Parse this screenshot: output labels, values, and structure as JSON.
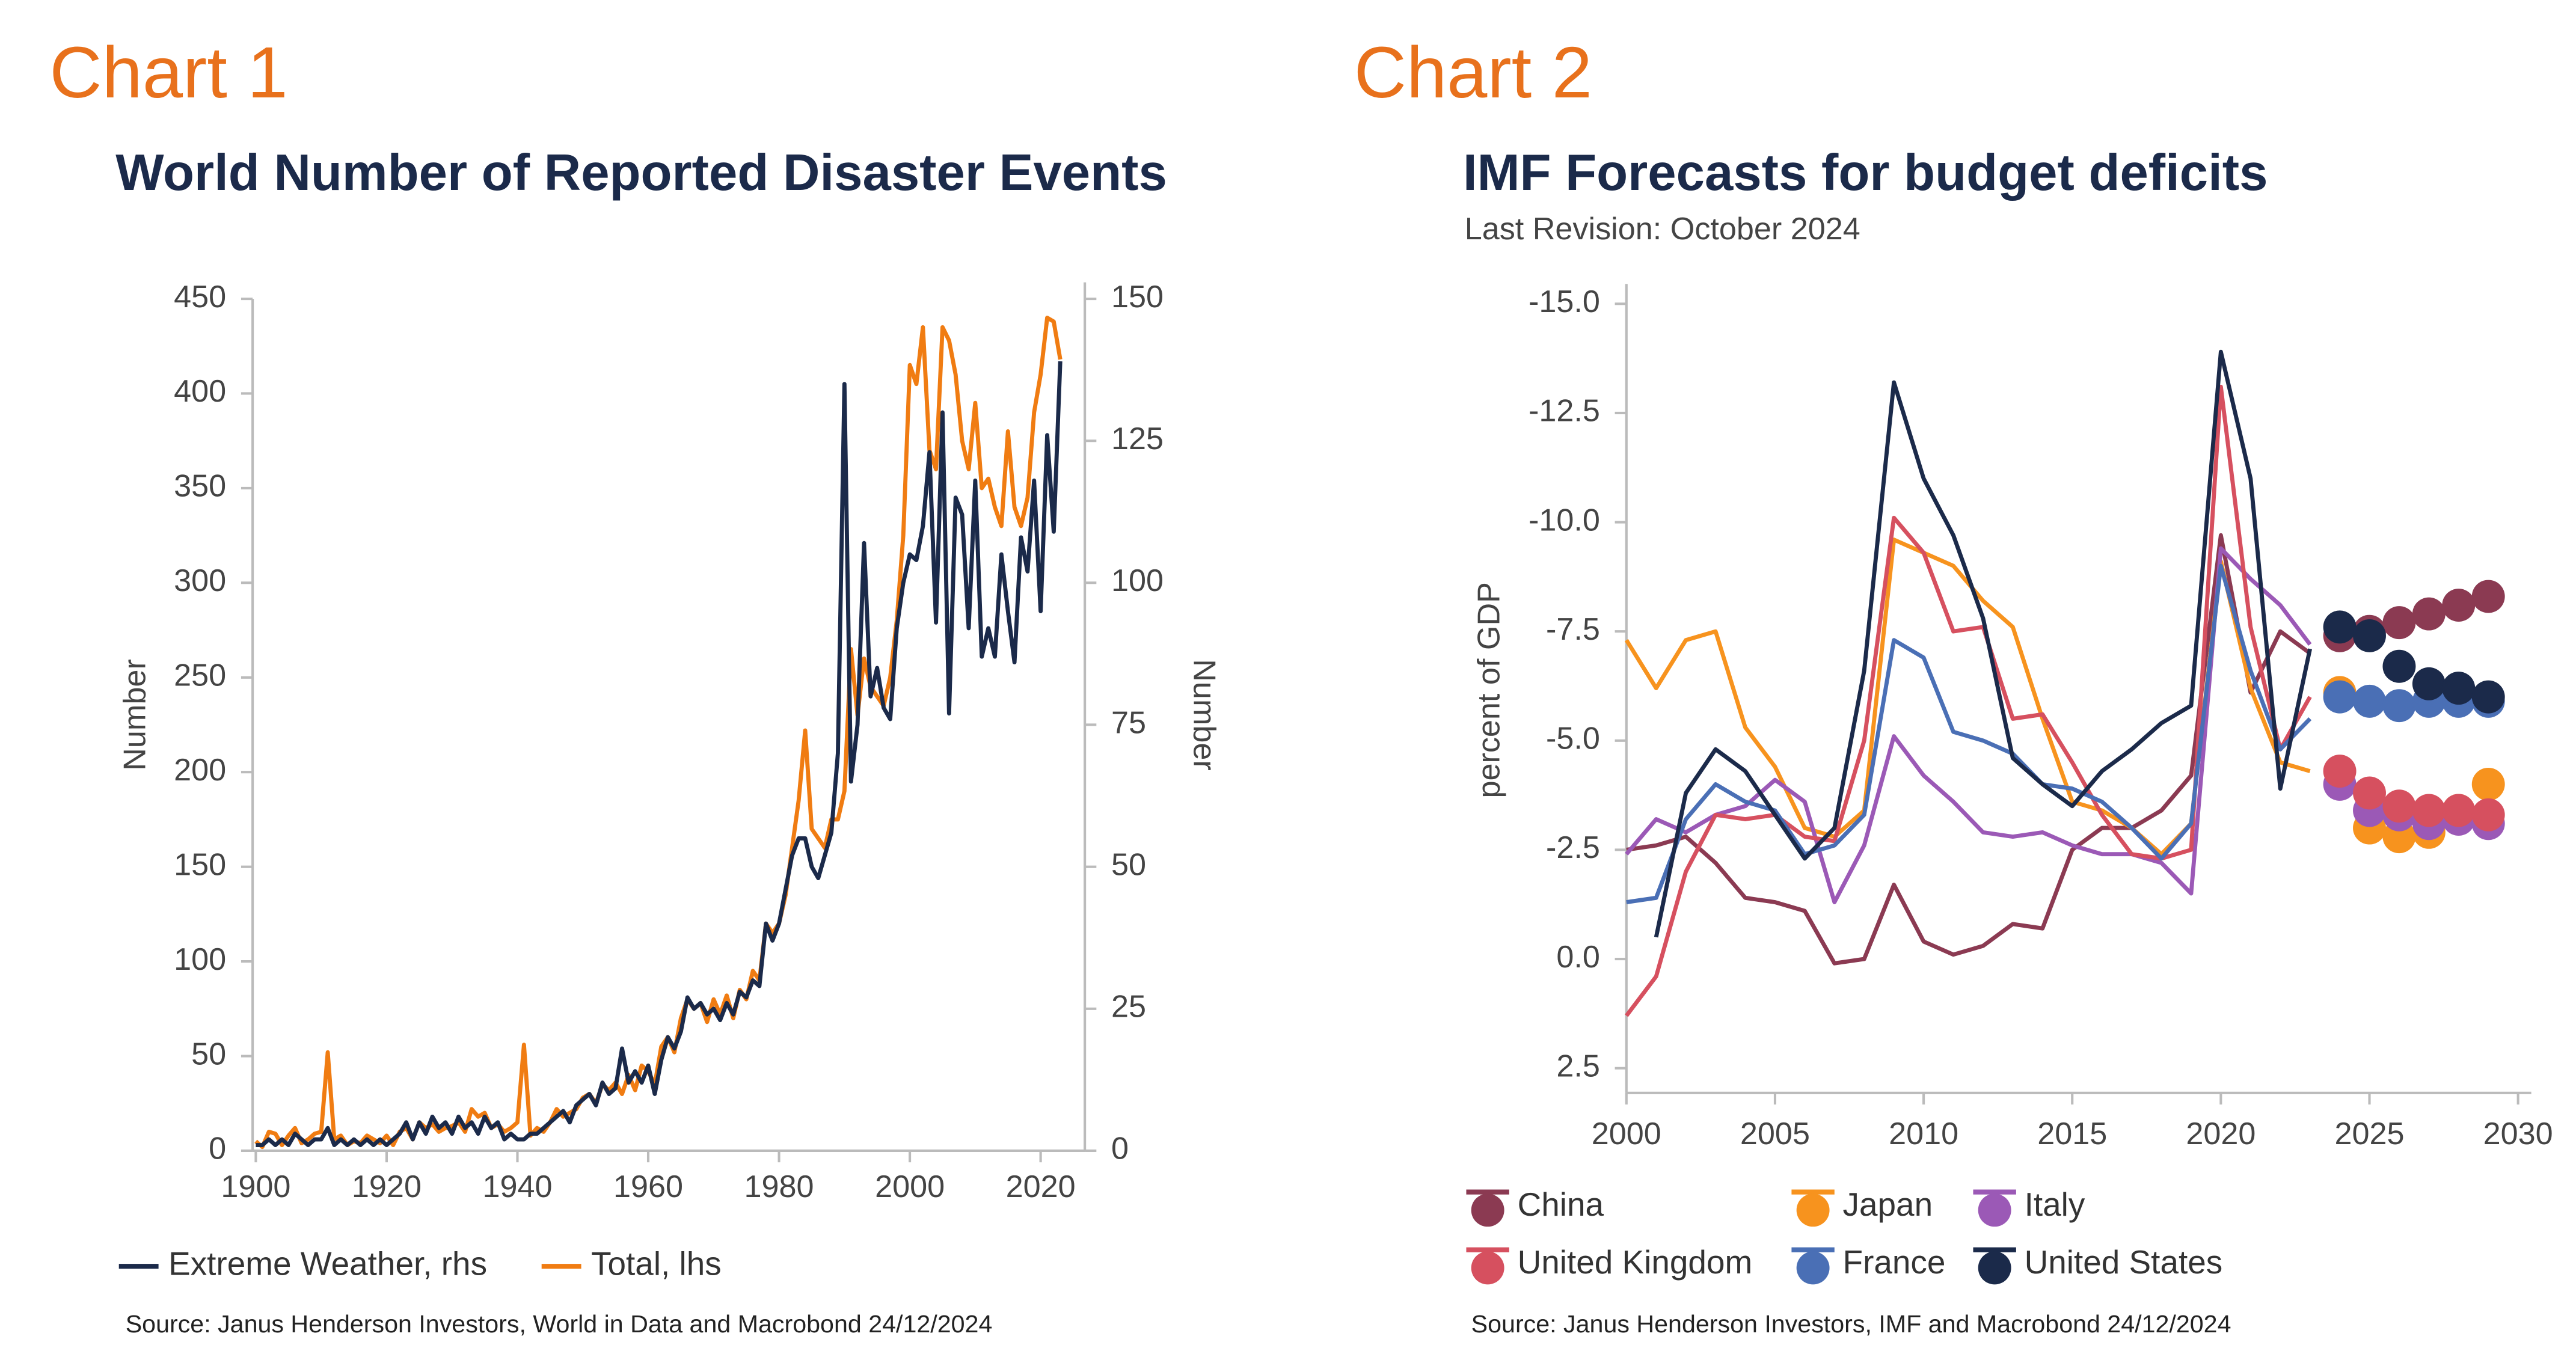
{
  "chart_data": [
    {
      "type": "line",
      "label": "Chart 1",
      "title": "World Number of Reported Disaster Events",
      "y_label": "Number",
      "y2_label": "Number",
      "source": "Source: Janus Henderson Investors, World in Data and Macrobond  24/12/2024",
      "xlim": [
        1898,
        2026
      ],
      "xticks": [
        1900,
        1920,
        1940,
        1960,
        1980,
        2000,
        2020
      ],
      "ylim": [
        0,
        450
      ],
      "yticks": [
        0,
        50,
        100,
        150,
        200,
        250,
        300,
        350,
        400,
        450
      ],
      "y2lim": [
        0,
        150
      ],
      "y2ticks": [
        0,
        25,
        50,
        75,
        100,
        125,
        150
      ],
      "x": [
        1900,
        1901,
        1902,
        1903,
        1904,
        1905,
        1906,
        1907,
        1908,
        1909,
        1910,
        1911,
        1912,
        1913,
        1914,
        1915,
        1916,
        1917,
        1918,
        1919,
        1920,
        1921,
        1922,
        1923,
        1924,
        1925,
        1926,
        1927,
        1928,
        1929,
        1930,
        1931,
        1932,
        1933,
        1934,
        1935,
        1936,
        1937,
        1938,
        1939,
        1940,
        1941,
        1942,
        1943,
        1944,
        1945,
        1946,
        1947,
        1948,
        1949,
        1950,
        1951,
        1952,
        1953,
        1954,
        1955,
        1956,
        1957,
        1958,
        1959,
        1960,
        1961,
        1962,
        1963,
        1964,
        1965,
        1966,
        1967,
        1968,
        1969,
        1970,
        1971,
        1972,
        1973,
        1974,
        1975,
        1976,
        1977,
        1978,
        1979,
        1980,
        1981,
        1982,
        1983,
        1984,
        1985,
        1986,
        1987,
        1988,
        1989,
        1990,
        1991,
        1992,
        1993,
        1994,
        1995,
        1996,
        1997,
        1998,
        1999,
        2000,
        2001,
        2002,
        2003,
        2004,
        2005,
        2006,
        2007,
        2008,
        2009,
        2010,
        2011,
        2012,
        2013,
        2014,
        2015,
        2016,
        2017,
        2018,
        2019,
        2020,
        2021,
        2022,
        2023
      ],
      "series": [
        {
          "name": "Extreme Weather, rhs",
          "color": "#1b2a4a",
          "axis": "y2",
          "values": [
            1,
            1,
            2,
            1,
            2,
            1,
            3,
            2,
            1,
            2,
            2,
            4,
            1,
            2,
            1,
            2,
            1,
            2,
            1,
            2,
            1,
            2,
            3,
            5,
            2,
            5,
            3,
            6,
            4,
            5,
            3,
            6,
            4,
            5,
            3,
            6,
            4,
            5,
            2,
            3,
            2,
            2,
            3,
            3,
            4,
            5,
            6,
            7,
            5,
            8,
            9,
            10,
            8,
            12,
            10,
            11,
            18,
            12,
            14,
            12,
            15,
            10,
            16,
            20,
            18,
            21,
            27,
            25,
            26,
            24,
            25,
            23,
            26,
            24,
            28,
            27,
            30,
            29,
            40,
            37,
            40,
            46,
            52,
            55,
            55,
            50,
            48,
            52,
            56,
            70,
            135,
            65,
            75,
            107,
            80,
            85,
            78,
            76,
            92,
            100,
            105,
            104,
            110,
            123,
            93,
            130,
            77,
            115,
            112,
            92,
            118,
            87,
            92,
            87,
            105,
            95,
            86,
            108,
            102,
            118,
            95,
            126,
            109,
            139
          ]
        },
        {
          "name": "Total, lhs",
          "color": "#f07c12",
          "axis": "y",
          "values": [
            5,
            2,
            10,
            9,
            3,
            8,
            12,
            4,
            6,
            9,
            10,
            52,
            6,
            8,
            3,
            5,
            4,
            8,
            6,
            4,
            8,
            3,
            10,
            12,
            6,
            15,
            12,
            14,
            10,
            12,
            13,
            15,
            10,
            22,
            18,
            20,
            12,
            14,
            10,
            12,
            15,
            56,
            8,
            12,
            10,
            15,
            22,
            18,
            20,
            22,
            28,
            30,
            25,
            35,
            32,
            36,
            30,
            40,
            32,
            45,
            42,
            35,
            55,
            60,
            52,
            70,
            80,
            75,
            78,
            68,
            80,
            72,
            82,
            70,
            85,
            80,
            95,
            90,
            120,
            115,
            120,
            135,
            160,
            185,
            222,
            170,
            165,
            160,
            175,
            175,
            190,
            265,
            230,
            260,
            245,
            240,
            235,
            250,
            280,
            325,
            415,
            405,
            435,
            370,
            360,
            435,
            428,
            410,
            375,
            360,
            395,
            350,
            355,
            340,
            330,
            380,
            340,
            330,
            345,
            390,
            410,
            440,
            438,
            418
          ]
        }
      ]
    },
    {
      "type": "line",
      "label": "Chart 2",
      "title": "IMF Forecasts for budget deficits",
      "subtitle": "Last Revision: October 2024",
      "y_label": "percent of GDP",
      "source": "Source: Janus Henderson Investors, IMF and Macrobond  24/12/2024",
      "xlim": [
        2000,
        2030
      ],
      "xticks": [
        2000,
        2005,
        2010,
        2015,
        2020,
        2025,
        2030
      ],
      "ylim": [
        -15,
        2.5
      ],
      "y_inverted": true,
      "yticks": [
        {
          "value": -15,
          "label": "-15.0"
        },
        -12.5,
        {
          "value": -10,
          "label": "-10.0"
        },
        -7.5,
        {
          "value": -5,
          "label": "-5.0"
        },
        -2.5,
        {
          "value": 0,
          "label": "0.0"
        },
        2.5
      ],
      "x": [
        2000,
        2001,
        2002,
        2003,
        2004,
        2005,
        2006,
        2007,
        2008,
        2009,
        2010,
        2011,
        2012,
        2013,
        2014,
        2015,
        2016,
        2017,
        2018,
        2019,
        2020,
        2021,
        2022,
        2023
      ],
      "forecast_x": [
        2024,
        2025,
        2026,
        2027,
        2028,
        2029
      ],
      "series": [
        {
          "name": "China",
          "color": "#8b3a52",
          "values": [
            -2.5,
            -2.6,
            -2.8,
            -2.2,
            -1.4,
            -1.3,
            -1.1,
            0.1,
            0,
            -1.7,
            -0.4,
            -0.1,
            -0.3,
            -0.8,
            -0.7,
            -2.5,
            -3.0,
            -3.0,
            -3.4,
            -4.2,
            -9.7,
            -6.1,
            -7.5,
            -7.0
          ],
          "forecast_values": [
            -7.4,
            -7.5,
            -7.7,
            -7.9,
            -8.1,
            -8.3
          ]
        },
        {
          "name": "Japan",
          "color": "#f7931e",
          "values": [
            -7.3,
            -6.2,
            -7.3,
            -7.5,
            -5.3,
            -4.4,
            -3.0,
            -2.8,
            -3.4,
            -9.6,
            -9.3,
            -9.0,
            -8.2,
            -7.6,
            -5.5,
            -3.6,
            -3.4,
            -3.0,
            -2.4,
            -3.1,
            -9.1,
            -6.2,
            -4.5,
            -4.3
          ],
          "forecast_values": [
            -6.1,
            -3.0,
            -2.8,
            -2.9,
            -3.4,
            -4.0
          ]
        },
        {
          "name": "Italy",
          "color": "#9b59b6",
          "values": [
            -2.4,
            -3.2,
            -2.9,
            -3.3,
            -3.5,
            -4.1,
            -3.6,
            -1.3,
            -2.6,
            -5.1,
            -4.2,
            -3.6,
            -2.9,
            -2.8,
            -2.9,
            -2.6,
            -2.4,
            -2.4,
            -2.2,
            -1.5,
            -9.4,
            -8.7,
            -8.1,
            -7.2
          ],
          "forecast_values": [
            -4.0,
            -3.4,
            -3.3,
            -3.1,
            -3.2,
            -3.1
          ]
        },
        {
          "name": "United Kingdom",
          "color": "#d6505f",
          "values": [
            1.3,
            0.4,
            -2.0,
            -3.3,
            -3.2,
            -3.3,
            -2.8,
            -2.7,
            -5.0,
            -10.1,
            -9.3,
            -7.5,
            -7.6,
            -5.5,
            -5.6,
            -4.5,
            -3.3,
            -2.4,
            -2.3,
            -2.5,
            -13.1,
            -7.6,
            -4.8,
            -6.0
          ],
          "forecast_values": [
            -4.3,
            -3.8,
            -3.5,
            -3.4,
            -3.4,
            -3.3
          ]
        },
        {
          "name": "France",
          "color": "#4a6fb5",
          "values": [
            -1.3,
            -1.4,
            -3.2,
            -4.0,
            -3.6,
            -3.4,
            -2.4,
            -2.6,
            -3.3,
            -7.3,
            -6.9,
            -5.2,
            -5.0,
            -4.7,
            -4.0,
            -3.9,
            -3.6,
            -3.0,
            -2.3,
            -3.1,
            -9.0,
            -6.6,
            -4.8,
            -5.5
          ],
          "forecast_values": [
            -6.0,
            -5.9,
            -5.8,
            -5.9,
            -5.9,
            -5.9
          ]
        },
        {
          "name": "United States",
          "color": "#1b2a4a",
          "values": [
            null,
            -0.5,
            -3.8,
            -4.8,
            -4.3,
            -3.3,
            -2.3,
            -3.0,
            -6.6,
            -13.2,
            -11.0,
            -9.7,
            -7.8,
            -4.6,
            -4.0,
            -3.5,
            -4.3,
            -4.8,
            -5.4,
            -5.8,
            -13.9,
            -11.0,
            -3.9,
            -7.1
          ],
          "forecast_values": [
            -7.6,
            -7.4,
            -6.7,
            -6.3,
            -6.2,
            -6.0
          ]
        }
      ]
    }
  ]
}
